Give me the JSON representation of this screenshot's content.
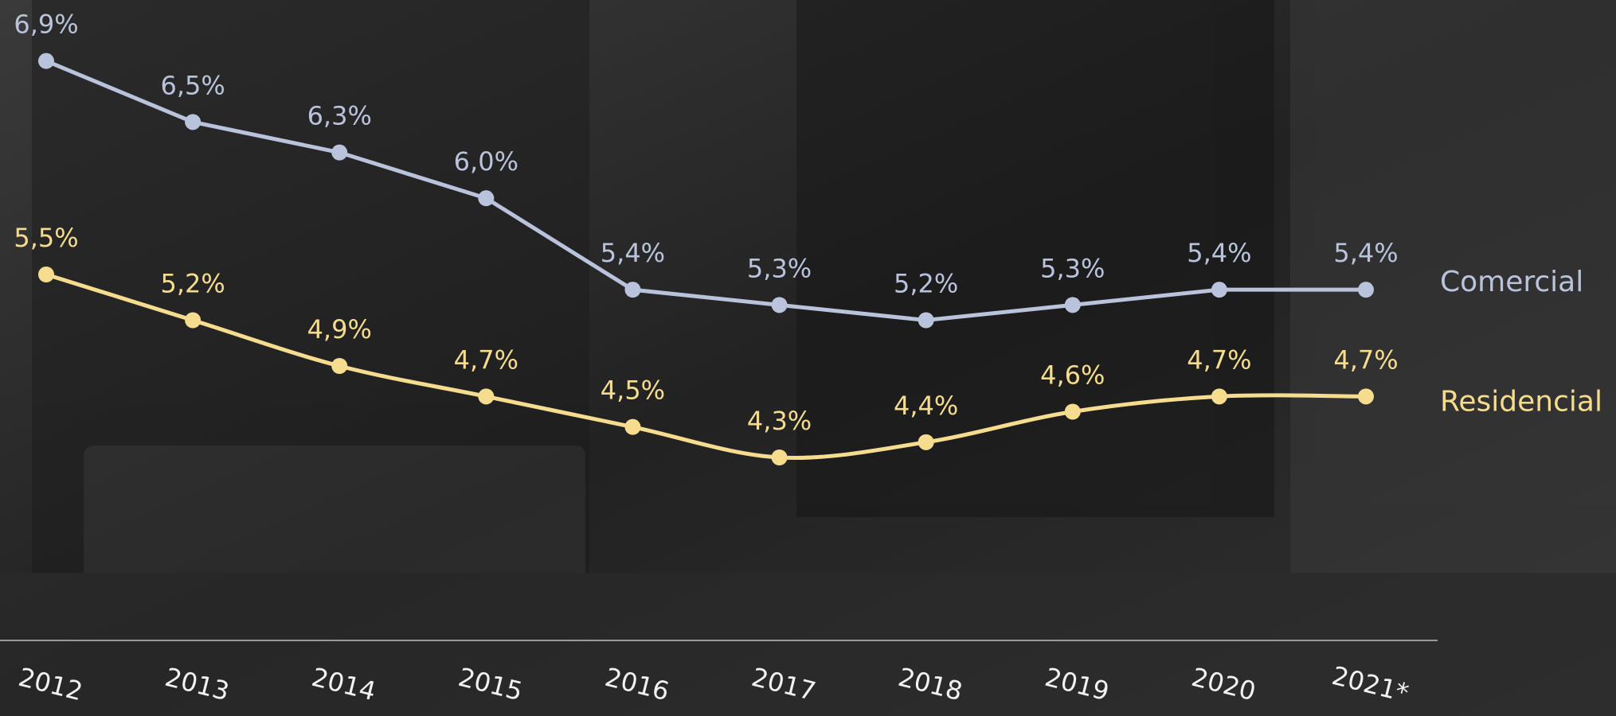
{
  "chart_data": {
    "type": "line",
    "categories": [
      "2012",
      "2013",
      "2014",
      "2015",
      "2016",
      "2017",
      "2018",
      "2019",
      "2020",
      "2021*"
    ],
    "ylim": [
      3.1,
      7.3
    ],
    "series": [
      {
        "name": "Comercial",
        "color": "#b9c3dc",
        "smooth": false,
        "values": [
          6.9,
          6.5,
          6.3,
          6.0,
          5.4,
          5.3,
          5.2,
          5.3,
          5.4,
          5.4
        ],
        "value_labels": [
          "6,9%",
          "6,5%",
          "6,3%",
          "6,0%",
          "5,4%",
          "5,3%",
          "5,2%",
          "5,3%",
          "5,4%",
          "5,4%"
        ]
      },
      {
        "name": "Residencial",
        "color": "#f6dc8e",
        "smooth": true,
        "values": [
          5.5,
          5.2,
          4.9,
          4.7,
          4.5,
          4.3,
          4.4,
          4.6,
          4.7,
          4.7
        ],
        "value_labels": [
          "5,5%",
          "5,2%",
          "4,9%",
          "4,7%",
          "4,5%",
          "4,3%",
          "4,4%",
          "4,6%",
          "4,7%",
          "4,7%"
        ]
      }
    ]
  }
}
